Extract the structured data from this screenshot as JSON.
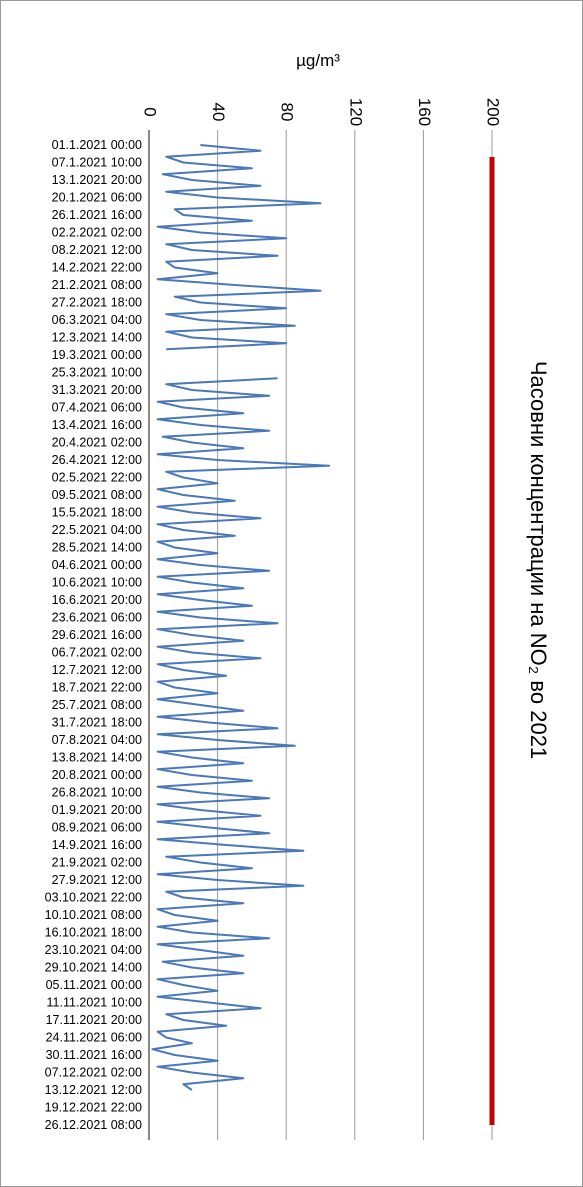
{
  "chart_data": {
    "type": "line",
    "orientation": "horizontal",
    "title": "Часовни концентрации на NO₂ во 2021",
    "value_axis_title": "µg/m³",
    "categories": [
      "01.1.2021 00:00",
      null,
      null,
      "07.1.2021 10:00",
      null,
      null,
      "13.1.2021 20:00",
      null,
      null,
      "20.1.2021 06:00",
      null,
      null,
      "26.1.2021 16:00",
      null,
      null,
      "02.2.2021 02:00",
      null,
      null,
      "08.2.2021 12:00",
      null,
      null,
      "14.2.2021 22:00",
      null,
      null,
      "21.2.2021 08:00",
      null,
      null,
      "27.2.2021 18:00",
      null,
      null,
      "06.3.2021 04:00",
      null,
      null,
      "12.3.2021 14:00",
      null,
      null,
      "19.3.2021 00:00",
      null,
      null,
      "25.3.2021 10:00",
      null,
      null,
      "31.3.2021 20:00",
      null,
      null,
      "07.4.2021 06:00",
      null,
      null,
      "13.4.2021 16:00",
      null,
      null,
      "20.4.2021 02:00",
      null,
      null,
      "26.4.2021 12:00",
      null,
      null,
      "02.5.2021 22:00",
      null,
      null,
      "09.5.2021 08:00",
      null,
      null,
      "15.5.2021 18:00",
      null,
      null,
      "22.5.2021 04:00",
      null,
      null,
      "28.5.2021 14:00",
      null,
      null,
      "04.6.2021 00:00",
      null,
      null,
      "10.6.2021 10:00",
      null,
      null,
      "16.6.2021 20:00",
      null,
      null,
      "23.6.2021 06:00",
      null,
      null,
      "29.6.2021 16:00",
      null,
      null,
      "06.7.2021 02:00",
      null,
      null,
      "12.7.2021 12:00",
      null,
      null,
      "18.7.2021 22:00",
      null,
      null,
      "25.7.2021 08:00",
      null,
      null,
      "31.7.2021 18:00",
      null,
      null,
      "07.8.2021 04:00",
      null,
      null,
      "13.8.2021 14:00",
      null,
      null,
      "20.8.2021 00:00",
      null,
      null,
      "26.8.2021 10:00",
      null,
      null,
      "01.9.2021 20:00",
      null,
      null,
      "08.9.2021 06:00",
      null,
      null,
      "14.9.2021 16:00",
      null,
      null,
      "21.9.2021 02:00",
      null,
      null,
      "27.9.2021 12:00",
      null,
      null,
      "03.10.2021 22:00",
      null,
      null,
      "10.10.2021 08:00",
      null,
      null,
      "16.10.2021 18:00",
      null,
      null,
      "23.10.2021 04:00",
      null,
      null,
      "29.10.2021 14:00",
      null,
      null,
      "05.11.2021 00:00",
      null,
      null,
      "11.11.2021 10:00",
      null,
      null,
      "17.11.2021 20:00",
      null,
      null,
      "24.11.2021 06:00",
      null,
      null,
      "30.11.2021 16:00",
      null,
      null,
      "07.12.2021 02:00",
      null,
      null,
      "13.12.2021 12:00",
      null,
      null,
      "19.12.2021 22:00",
      null,
      null,
      "26.12.2021 08:00",
      null,
      null
    ],
    "series": [
      {
        "color": "#4a78b8",
        "values": [
          30,
          65,
          10,
          20,
          60,
          8,
          25,
          65,
          10,
          40,
          100,
          15,
          20,
          60,
          5,
          30,
          80,
          10,
          25,
          75,
          10,
          15,
          40,
          5,
          50,
          100,
          15,
          30,
          80,
          10,
          30,
          85,
          10,
          25,
          80,
          10,
          null,
          null,
          null,
          null,
          75,
          10,
          25,
          70,
          5,
          20,
          55,
          5,
          30,
          70,
          8,
          25,
          55,
          5,
          40,
          105,
          10,
          20,
          40,
          5,
          20,
          50,
          5,
          25,
          65,
          5,
          20,
          50,
          5,
          15,
          40,
          5,
          30,
          70,
          5,
          25,
          55,
          5,
          30,
          60,
          5,
          30,
          75,
          5,
          25,
          55,
          5,
          25,
          65,
          5,
          20,
          45,
          5,
          15,
          40,
          5,
          30,
          55,
          5,
          35,
          75,
          5,
          40,
          85,
          5,
          25,
          55,
          5,
          25,
          60,
          5,
          30,
          70,
          5,
          30,
          65,
          5,
          35,
          70,
          5,
          45,
          90,
          10,
          30,
          60,
          5,
          40,
          90,
          10,
          20,
          55,
          5,
          15,
          40,
          5,
          25,
          70,
          5,
          30,
          55,
          8,
          25,
          55,
          5,
          20,
          40,
          5,
          35,
          65,
          10,
          20,
          45,
          5,
          10,
          25,
          2,
          15,
          40,
          5,
          25,
          55,
          20,
          25,
          null,
          null,
          null,
          null,
          null,
          null,
          null,
          null
        ]
      }
    ],
    "limit": {
      "value": 200,
      "color": "#c00000"
    },
    "xlim": [
      0,
      200
    ],
    "xticks": [
      0,
      40,
      80,
      120,
      160,
      200
    ],
    "grid": true
  }
}
